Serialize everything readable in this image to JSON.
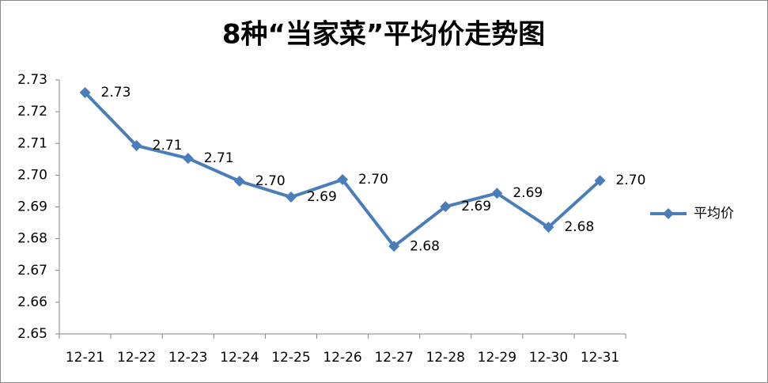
{
  "chart_data": {
    "type": "line",
    "title": "8种“当家菜”平均价走势图",
    "categories": [
      "12-21",
      "12-22",
      "12-23",
      "12-24",
      "12-25",
      "12-26",
      "12-27",
      "12-28",
      "12-29",
      "12-30",
      "12-31"
    ],
    "series": [
      {
        "name": "平均价",
        "color": "#4a7ebb",
        "values": [
          2.726,
          2.7093,
          2.7053,
          2.6981,
          2.6931,
          2.6986,
          2.6776,
          2.6901,
          2.6943,
          2.6836,
          2.6983
        ],
        "value_labels": [
          "2.73",
          "2.71",
          "2.71",
          "2.70",
          "2.69",
          "2.70",
          "2.68",
          "2.69",
          "2.69",
          "2.68",
          "2.70"
        ]
      }
    ],
    "ylim": [
      2.65,
      2.73
    ],
    "yticks": [
      2.65,
      2.66,
      2.67,
      2.68,
      2.69,
      {
        "value": 2.7,
        "label": "2.70"
      },
      2.71,
      2.72,
      2.73
    ],
    "grid": false,
    "legend": "right"
  }
}
